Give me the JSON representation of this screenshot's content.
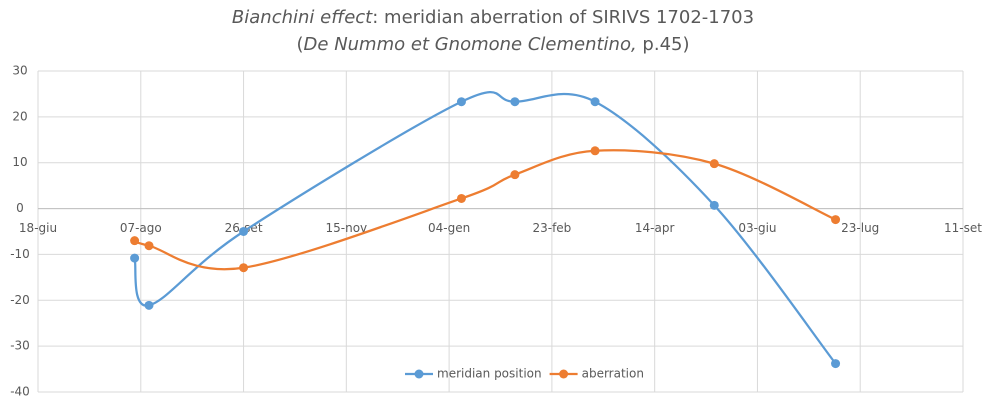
{
  "chart_data": {
    "type": "scatter-smooth",
    "title": [
      [
        {
          "text": "Bianchini effect",
          "italic": true
        },
        {
          "text": ": meridian aberration of SIRIVS 1702-1703"
        }
      ],
      [
        {
          "text": "("
        },
        {
          "text": "De Nummo et Gnomone Clementino,",
          "italic": true
        },
        {
          "text": " p.45)"
        }
      ]
    ],
    "xlim": [
      0,
      450
    ],
    "xticks": [
      {
        "value": 0,
        "label": "18-giu"
      },
      {
        "value": 50,
        "label": "07-ago"
      },
      {
        "value": 100,
        "label": "26-set"
      },
      {
        "value": 150,
        "label": "15-nov"
      },
      {
        "value": 200,
        "label": "04-gen"
      },
      {
        "value": 250,
        "label": "23-feb"
      },
      {
        "value": 300,
        "label": "14-apr"
      },
      {
        "value": 350,
        "label": "03-giu"
      },
      {
        "value": 400,
        "label": "23-lug"
      },
      {
        "value": 450,
        "label": "11-set"
      }
    ],
    "ylim": [
      -40,
      30
    ],
    "yticks": [
      -40,
      -30,
      -20,
      -10,
      0,
      10,
      20,
      30
    ],
    "grid": true,
    "legend": "bottom",
    "series": [
      {
        "name": "meridian position",
        "color": "#5b9bd5",
        "x": [
          47,
          54,
          100,
          206,
          232,
          271,
          329,
          388
        ],
        "values": [
          -10.8,
          -21.1,
          -5.0,
          23.3,
          23.3,
          23.3,
          0.7,
          -33.8
        ]
      },
      {
        "name": "aberration",
        "color": "#ed7d31",
        "x": [
          47,
          54,
          100,
          206,
          232,
          271,
          329,
          388
        ],
        "values": [
          -7.0,
          -8.1,
          -12.9,
          2.2,
          7.4,
          12.6,
          9.8,
          -2.4
        ]
      }
    ]
  }
}
